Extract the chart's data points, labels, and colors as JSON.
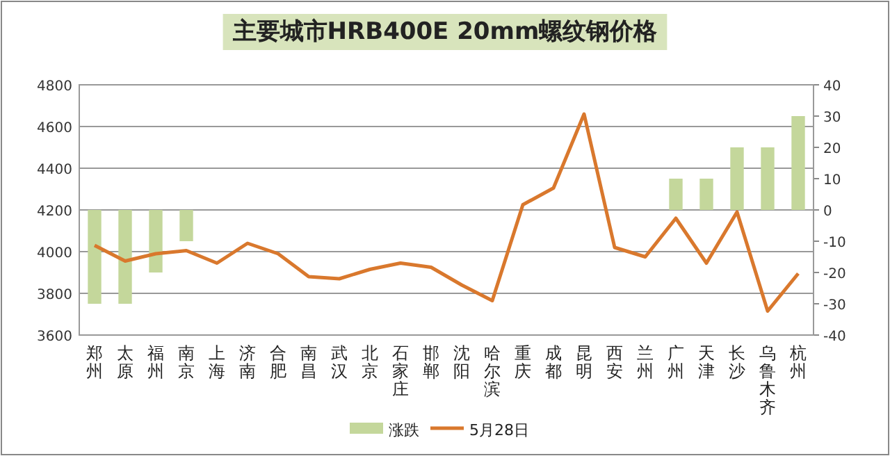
{
  "chart_data": {
    "type": "bar",
    "title": "主要城市HRB400E 20mm螺纹钢价格",
    "categories": [
      "郑州",
      "太原",
      "福州",
      "南京",
      "上海",
      "济南",
      "合肥",
      "南昌",
      "武汉",
      "北京",
      "石家庄",
      "邯郸",
      "沈阳",
      "哈尔滨",
      "重庆",
      "成都",
      "昆明",
      "西安",
      "兰州",
      "广州",
      "天津",
      "长沙",
      "乌鲁木齐",
      "杭州"
    ],
    "series": [
      {
        "name": "涨跌",
        "axis": "y2",
        "color": "#c4d79b",
        "values": [
          -30,
          -30,
          -20,
          -10,
          null,
          null,
          null,
          null,
          null,
          null,
          null,
          null,
          null,
          null,
          null,
          null,
          null,
          null,
          null,
          10,
          10,
          20,
          20,
          30
        ]
      },
      {
        "name": "5月28日",
        "type": "line",
        "color": "#d9782d",
        "values": [
          4030,
          3955,
          3990,
          4005,
          3945,
          4040,
          3990,
          3880,
          3870,
          3915,
          3945,
          3925,
          3840,
          3765,
          4225,
          4305,
          4660,
          4020,
          3975,
          4160,
          3945,
          4190,
          3715,
          3895
        ]
      }
    ],
    "ylim": [
      3600,
      4800
    ],
    "yticks": [
      3600,
      3800,
      4000,
      4200,
      4400,
      4600,
      4800
    ],
    "y2lim": [
      -40,
      40
    ],
    "y2ticks": [
      -40,
      -30,
      -20,
      -10,
      0,
      10,
      20,
      30,
      40
    ],
    "grid": "y",
    "legend": "bottom"
  }
}
